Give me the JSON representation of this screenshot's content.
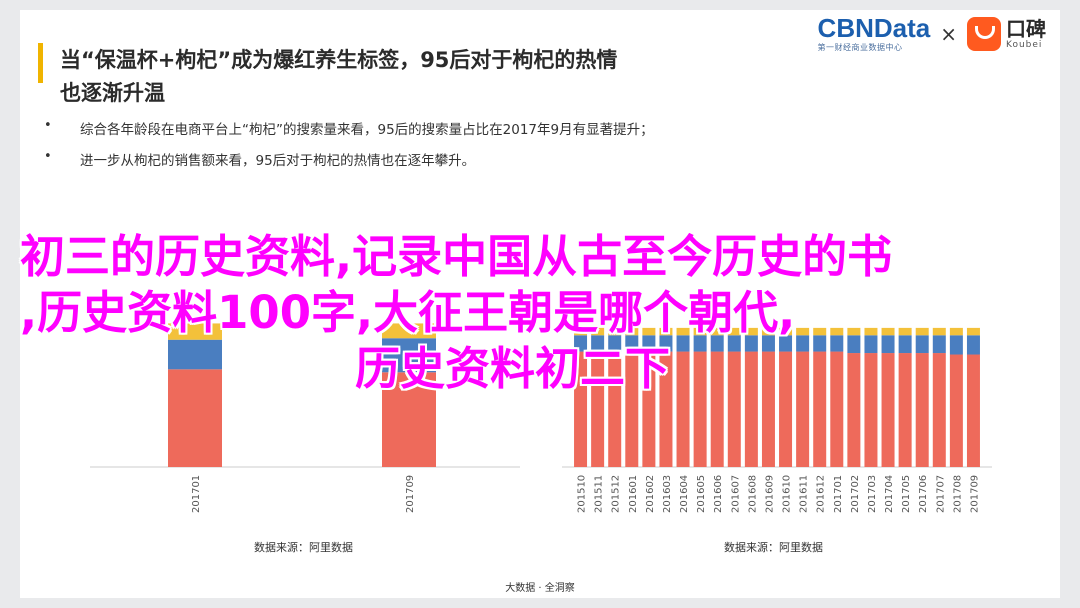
{
  "headline": {
    "line1": "当“保温杯+枸杞”成为爆红养生标签，95后对于枸杞的热情",
    "line2": "也逐渐升温"
  },
  "brand": {
    "cbn_logo": "CBNData",
    "cbn_sub": "第一财经商业数据中心",
    "times": "×",
    "koubei_name": "口碑",
    "koubei_en": "Koubei"
  },
  "bullets": [
    {
      "marker": "•",
      "text": "综合各年龄段在电商平台上“枸杞”的搜索量来看，95后的搜索量占比在2017年9月有显著提升；"
    },
    {
      "marker": "•",
      "text": "进一步从枸杞的销售额来看，95后对于枸杞的热情也在逐年攀升。"
    }
  ],
  "overlay": {
    "line1": "初三的历史资料,记录中国从古至今历史的书",
    "line2": ",历史资料100字,大征王朝是哪个朝代,",
    "line3": "历史资料初二下"
  },
  "chart_data": [
    {
      "type": "bar",
      "stacked": true,
      "categories": [
        "201701",
        "201709"
      ],
      "series": [
        {
          "values": [
            66,
            64
          ],
          "color": "#ee6a5b"
        },
        {
          "values": [
            20,
            23
          ],
          "color": "#4a7ec0"
        },
        {
          "values": [
            11,
            10
          ],
          "color": "#f3c13a"
        }
      ],
      "ylim": [
        0,
        100
      ],
      "source": "数据来源：阿里数据"
    },
    {
      "type": "bar",
      "stacked": true,
      "categories": [
        "201510",
        "201511",
        "201512",
        "201601",
        "201602",
        "201603",
        "201604",
        "201605",
        "201606",
        "201607",
        "201608",
        "201609",
        "201610",
        "201611",
        "201612",
        "201701",
        "201702",
        "201703",
        "201704",
        "201705",
        "201706",
        "201707",
        "201708",
        "201709"
      ],
      "series": [
        {
          "values": [
            78,
            78,
            78,
            78,
            78,
            78,
            78,
            78,
            78,
            78,
            78,
            78,
            78,
            78,
            78,
            78,
            77,
            77,
            77,
            77,
            77,
            77,
            76,
            76
          ],
          "color": "#ee6a5b"
        },
        {
          "values": [
            11,
            11,
            11,
            11,
            11,
            11,
            11,
            11,
            11,
            11,
            11,
            11,
            11,
            11,
            11,
            11,
            12,
            12,
            12,
            12,
            12,
            12,
            13,
            13
          ],
          "color": "#4a7ec0"
        },
        {
          "values": [
            5,
            5,
            5,
            5,
            5,
            5,
            5,
            5,
            5,
            5,
            5,
            5,
            5,
            5,
            5,
            5,
            5,
            5,
            5,
            5,
            5,
            5,
            5,
            5
          ],
          "color": "#f3c13a"
        }
      ],
      "ylim": [
        0,
        100
      ],
      "source": "数据来源：阿里数据"
    }
  ],
  "footer": "大数据 · 全洞察"
}
